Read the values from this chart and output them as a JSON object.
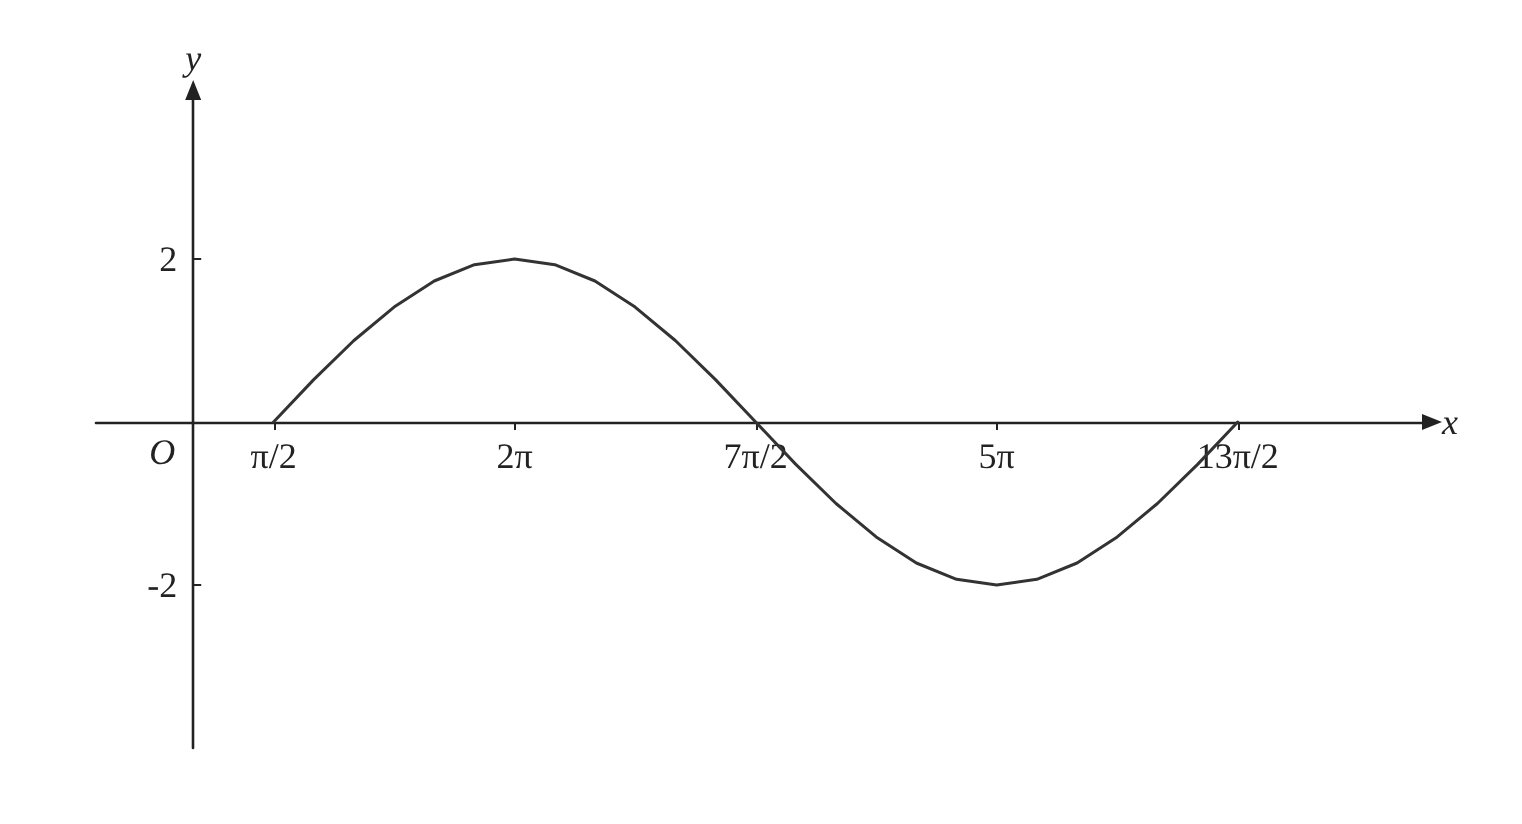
{
  "chart_data": {
    "type": "line",
    "xlabel": "x",
    "ylabel": "y",
    "annotations": [
      "O"
    ],
    "x": [
      1.571,
      2.356,
      3.142,
      3.927,
      4.712,
      5.498,
      6.283,
      7.069,
      7.854,
      8.639,
      9.425,
      10.21,
      10.996,
      11.781,
      12.566,
      13.352,
      14.137,
      14.923,
      15.708,
      16.493,
      17.279,
      18.064,
      18.85,
      19.635,
      20.42
    ],
    "series": [
      {
        "color": "#333333",
        "values": [
          0,
          0.52,
          1,
          1.41,
          1.73,
          1.93,
          2,
          1.93,
          1.73,
          1.41,
          1,
          0.52,
          0,
          -0.52,
          -1,
          -1.41,
          -1.73,
          -1.93,
          -2,
          -1.93,
          -1.73,
          -1.41,
          -1,
          -0.52,
          0
        ]
      }
    ],
    "xlim": [
      -1.9,
      24.1
    ],
    "ylim": [
      -4,
      4
    ],
    "xticks": [
      {
        "value": 1.571,
        "label": "π/2"
      },
      {
        "value": 6.283,
        "label": "2π"
      },
      {
        "value": 10.996,
        "label": "7π/2"
      },
      {
        "value": 15.708,
        "label": "5π"
      },
      {
        "value": 20.42,
        "label": "13π/2"
      }
    ],
    "yticks": [
      -2,
      2
    ],
    "grid": false,
    "marker": "none",
    "line_style": "solid"
  }
}
